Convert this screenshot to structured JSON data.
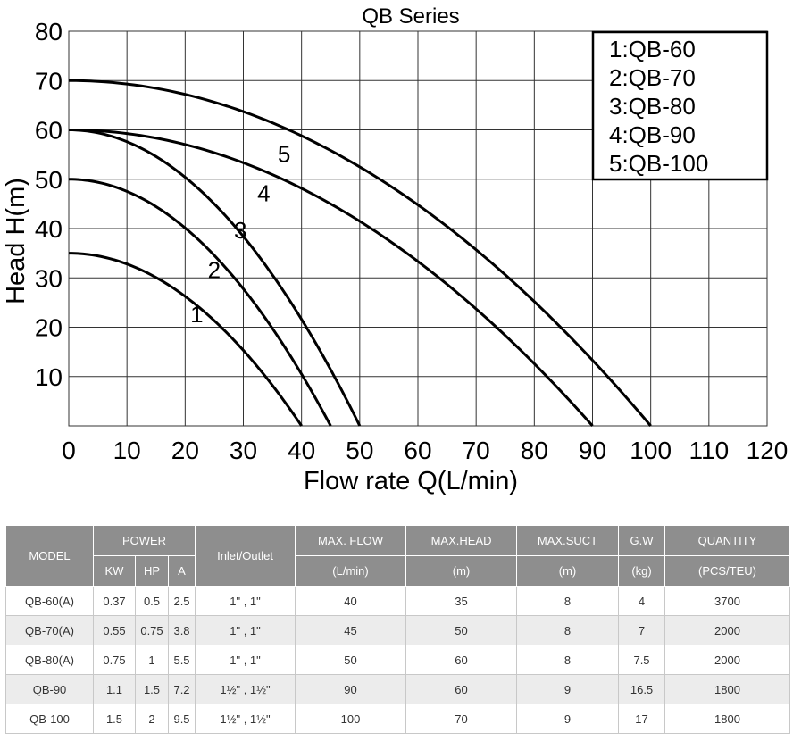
{
  "chart_data": {
    "type": "line",
    "title": "QB Series",
    "xlabel": "Flow rate Q(L/min)",
    "ylabel": "Head H(m)",
    "xlim": [
      0,
      120
    ],
    "ylim": [
      0,
      80
    ],
    "x_ticks": [
      "0",
      "10",
      "20",
      "30",
      "40",
      "50",
      "60",
      "70",
      "80",
      "90",
      "100",
      "110",
      "120"
    ],
    "y_ticks": [
      "10",
      "20",
      "30",
      "40",
      "50",
      "60",
      "70",
      "80"
    ],
    "grid": true,
    "legend": {
      "placement": "top-right",
      "entries": [
        "1:QB-60",
        "2:QB-70",
        "3:QB-80",
        "4:QB-90",
        "5:QB-100"
      ]
    },
    "series": [
      {
        "name": "1",
        "max_flow": 40,
        "max_head": 35,
        "label_at": [
          22,
          21
        ]
      },
      {
        "name": "2",
        "max_flow": 45,
        "max_head": 50,
        "label_at": [
          25,
          30
        ]
      },
      {
        "name": "3",
        "max_flow": 50,
        "max_head": 60,
        "label_at": [
          29.5,
          38
        ]
      },
      {
        "name": "4",
        "max_flow": 90,
        "max_head": 60,
        "label_at": [
          33.5,
          45.5
        ]
      },
      {
        "name": "5",
        "max_flow": 100,
        "max_head": 70,
        "label_at": [
          37,
          53.5
        ]
      }
    ]
  },
  "table": {
    "headers": {
      "model": "MODEL",
      "power": "POWER",
      "kw": "KW",
      "hp": "HP",
      "a": "A",
      "inlet": "Inlet/Outlet",
      "max_flow": "MAX. FLOW",
      "max_flow_unit": "(L/min)",
      "max_head": "MAX.HEAD",
      "max_head_unit": "(m)",
      "max_suct": "MAX.SUCT",
      "max_suct_unit": "(m)",
      "gw": "G.W",
      "gw_unit": "(kg)",
      "quantity": "QUANTITY",
      "quantity_unit": "(PCS/TEU)"
    },
    "rows": [
      {
        "model": "QB-60(A)",
        "kw": "0.37",
        "hp": "0.5",
        "a": "2.5",
        "inlet": "1\" , 1\"",
        "flow": "40",
        "head": "35",
        "suct": "8",
        "gw": "4",
        "qty": "3700"
      },
      {
        "model": "QB-70(A)",
        "kw": "0.55",
        "hp": "0.75",
        "a": "3.8",
        "inlet": "1\" , 1\"",
        "flow": "45",
        "head": "50",
        "suct": "8",
        "gw": "7",
        "qty": "2000"
      },
      {
        "model": "QB-80(A)",
        "kw": "0.75",
        "hp": "1",
        "a": "5.5",
        "inlet": "1\" , 1\"",
        "flow": "50",
        "head": "60",
        "suct": "8",
        "gw": "7.5",
        "qty": "2000"
      },
      {
        "model": "QB-90",
        "kw": "1.1",
        "hp": "1.5",
        "a": "7.2",
        "inlet": "1½\" , 1½\"",
        "flow": "90",
        "head": "60",
        "suct": "9",
        "gw": "16.5",
        "qty": "1800"
      },
      {
        "model": "QB-100",
        "kw": "1.5",
        "hp": "2",
        "a": "9.5",
        "inlet": "1½\" , 1½\"",
        "flow": "100",
        "head": "70",
        "suct": "9",
        "gw": "17",
        "qty": "1800"
      }
    ]
  }
}
